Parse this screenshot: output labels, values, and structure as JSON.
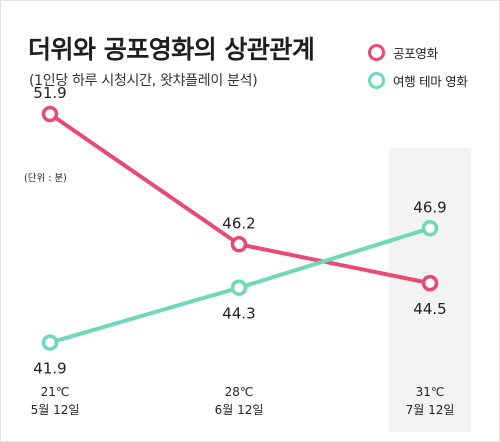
{
  "title": "더위와 공포영화의 상관관계",
  "subtitle": "(1인당 하루 시청시간, 왓챠플레이 분석)",
  "unit_label": "(단위 : 분)",
  "legend": [
    {
      "label": "공포영화",
      "color": "#e84a73"
    },
    {
      "label": "여행 테마 영화",
      "color": "#6fd9b7"
    }
  ],
  "colors": {
    "highlight_band": "#f3f3f3"
  },
  "x_labels": [
    {
      "temp": "21℃",
      "date": "5월 12일"
    },
    {
      "temp": "28℃",
      "date": "6월 12일"
    },
    {
      "temp": "31℃",
      "date": "7월 12일"
    }
  ],
  "chart_data": {
    "type": "line",
    "title": "더위와 공포영화의 상관관계",
    "subtitle": "(1인당 하루 시청시간, 왓챠플레이 분석)",
    "categories": [
      "5월 12일",
      "6월 12일",
      "7월 12일"
    ],
    "temperatures": [
      "21℃",
      "28℃",
      "31℃"
    ],
    "unit": "(단위 : 분)",
    "series": [
      {
        "name": "공포영화",
        "values": [
          51.9,
          46.2,
          44.5
        ],
        "color": "#e84a73"
      },
      {
        "name": "여행 테마 영화",
        "values": [
          41.9,
          44.3,
          46.9
        ],
        "color": "#6fd9b7"
      }
    ],
    "value_labels": [
      [
        "51.9",
        "46.2",
        "44.5"
      ],
      [
        "41.9",
        "44.3",
        "46.9"
      ]
    ],
    "ylim": [
      40,
      54
    ],
    "grid": false,
    "legend_position": "top-right",
    "highlighted_category": "7월 12일"
  }
}
